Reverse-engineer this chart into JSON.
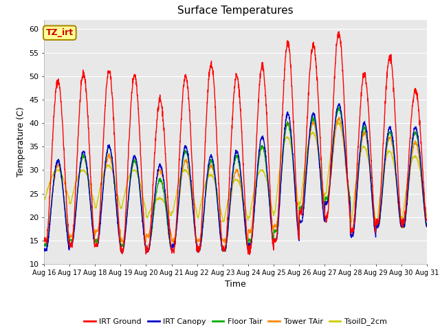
{
  "title": "Surface Temperatures",
  "xlabel": "Time",
  "ylabel": "Temperature (C)",
  "ylim": [
    10,
    62
  ],
  "yticks": [
    10,
    15,
    20,
    25,
    30,
    35,
    40,
    45,
    50,
    55,
    60
  ],
  "background_color": "#e8e8e8",
  "figure_color": "#ffffff",
  "annotation_text": "TZ_irt",
  "annotation_bg": "#ffff99",
  "annotation_border": "#aa8800",
  "legend_entries": [
    "IRT Ground",
    "IRT Canopy",
    "Floor Tair",
    "Tower TAir",
    "TsoilD_2cm"
  ],
  "line_colors": [
    "#ff0000",
    "#0000cc",
    "#00aa00",
    "#ff8800",
    "#cccc00"
  ],
  "n_days": 15,
  "points_per_day": 144,
  "day_start": 16,
  "red_peaks": [
    49,
    50.5,
    51,
    50.3,
    45,
    50,
    52.5,
    50,
    52,
    57,
    56.5,
    59,
    50.5,
    54,
    47
  ],
  "red_mins": [
    15,
    14,
    14,
    13,
    13,
    13,
    13,
    13,
    13,
    15,
    21,
    20,
    17,
    19,
    19
  ],
  "blue_peaks": [
    32,
    34,
    35,
    33,
    31,
    35,
    33,
    34,
    37,
    42,
    42,
    44,
    40,
    39,
    39
  ],
  "blue_mins": [
    13,
    14,
    14,
    13,
    13,
    14,
    13,
    13,
    14,
    15,
    19,
    23,
    16,
    18,
    18
  ],
  "green_peaks": [
    32,
    33,
    35,
    32,
    28,
    34,
    32,
    33,
    35,
    40,
    41,
    43,
    39,
    38,
    38
  ],
  "green_mins": [
    14,
    15,
    15,
    14,
    13,
    14,
    13,
    13,
    15,
    17,
    22,
    24,
    17,
    18,
    18
  ],
  "orange_peaks": [
    31,
    33,
    33,
    32,
    30,
    32,
    31,
    30,
    35,
    40,
    40,
    41,
    38,
    37,
    36
  ],
  "orange_mins": [
    15,
    16,
    17,
    15,
    16,
    15,
    15,
    15,
    17,
    18,
    21,
    23,
    17,
    18,
    18
  ],
  "yellow_peaks": [
    30,
    30,
    31,
    30,
    24,
    30,
    29,
    28,
    30,
    37,
    38,
    40,
    35,
    34,
    33
  ],
  "yellow_starts": [
    24,
    23,
    22,
    22,
    20,
    21,
    20,
    19,
    20,
    21,
    23,
    25,
    19,
    19,
    20
  ]
}
